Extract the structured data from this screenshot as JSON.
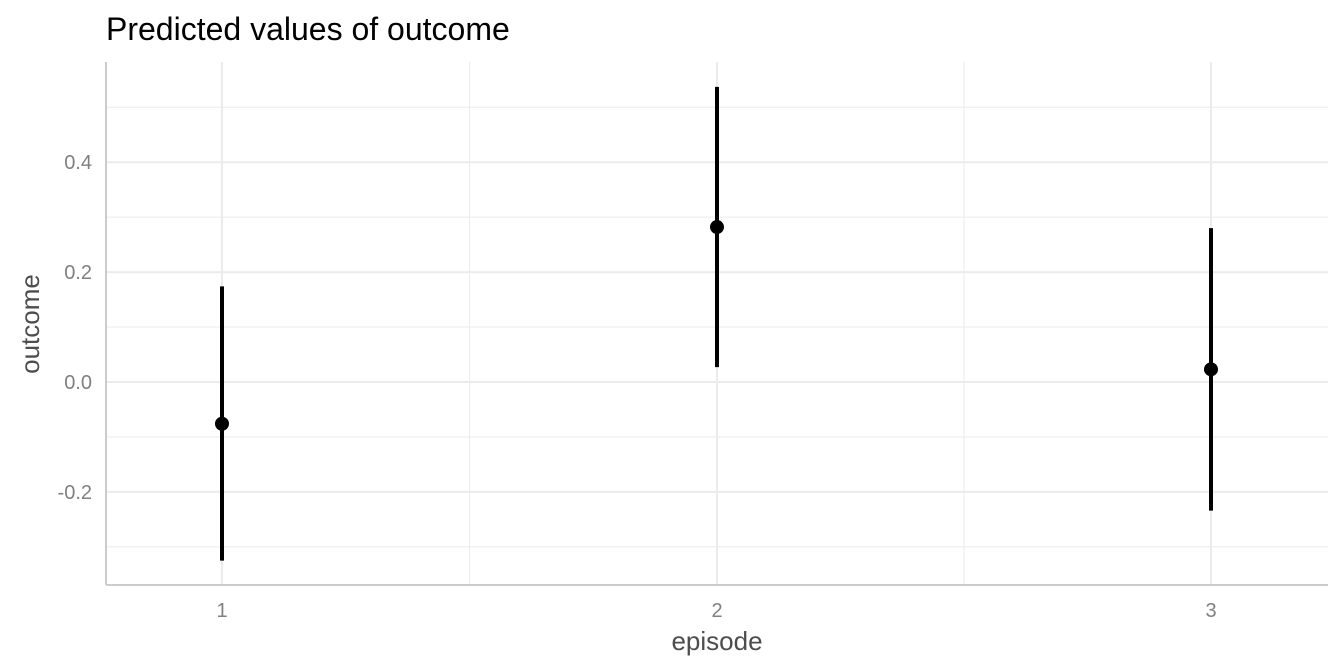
{
  "chart_data": {
    "type": "scatter",
    "title": "Predicted values of outcome",
    "xlabel": "episode",
    "ylabel": "outcome",
    "categories": [
      "1",
      "2",
      "3"
    ],
    "x_tick_labels": [
      "1",
      "2",
      "3"
    ],
    "y_tick_labels": [
      "-0.2",
      "0.0",
      "0.2",
      "0.4"
    ],
    "y_ticks": [
      -0.2,
      0.0,
      0.2,
      0.4
    ],
    "ylim": [
      -0.37,
      0.58
    ],
    "grid": true,
    "legend": "none",
    "series": [
      {
        "values": [
          -0.076,
          0.282,
          0.023
        ],
        "lower": [
          -0.325,
          0.027,
          -0.234
        ],
        "upper": [
          0.174,
          0.537,
          0.28
        ]
      }
    ],
    "colors": {
      "point": "#000000",
      "errorbar": "#000000",
      "grid": "#ebebeb",
      "axis_line": "#cccccc"
    }
  }
}
